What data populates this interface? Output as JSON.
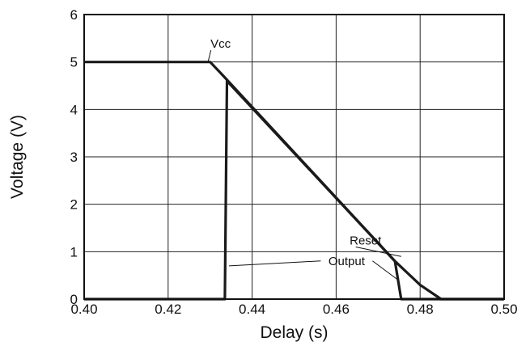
{
  "chart_data": {
    "type": "line",
    "title": "",
    "xlabel": "Delay (s)",
    "ylabel": "Voltage (V)",
    "xlim": [
      0.4,
      0.5
    ],
    "ylim": [
      0,
      6
    ],
    "grid": true,
    "x_ticks": [
      "0.40",
      "0.42",
      "0.44",
      "0.46",
      "0.48",
      "0.50"
    ],
    "y_ticks": [
      "0",
      "1",
      "2",
      "3",
      "4",
      "5",
      "6"
    ],
    "series": [
      {
        "name": "Vcc",
        "color": "#1a1a1a",
        "points": [
          [
            0.4,
            5.0
          ],
          [
            0.429,
            5.0
          ],
          [
            0.43,
            5.0
          ],
          [
            0.433,
            4.72
          ],
          [
            0.474,
            0.8
          ],
          [
            0.48,
            0.3
          ],
          [
            0.485,
            0.0
          ],
          [
            0.5,
            0.0
          ]
        ]
      },
      {
        "name": "Reset Output",
        "color": "#1a1a1a",
        "points": [
          [
            0.4,
            0.0
          ],
          [
            0.4335,
            0.0
          ],
          [
            0.434,
            4.6
          ],
          [
            0.474,
            0.8
          ],
          [
            0.4755,
            0.0
          ],
          [
            0.5,
            0.0
          ]
        ]
      }
    ],
    "annotations": [
      {
        "text": "Vcc",
        "x": 0.4325,
        "y": 5.3,
        "target": [
          0.4295,
          5.0
        ]
      },
      {
        "text": "Reset",
        "x": 0.467,
        "y": 1.15,
        "target": [
          0.4755,
          0.9
        ]
      },
      {
        "text": "Output",
        "x": 0.4625,
        "y": 0.72,
        "target_left": [
          0.4345,
          0.7
        ],
        "target_right": [
          0.4745,
          0.42
        ]
      }
    ]
  }
}
